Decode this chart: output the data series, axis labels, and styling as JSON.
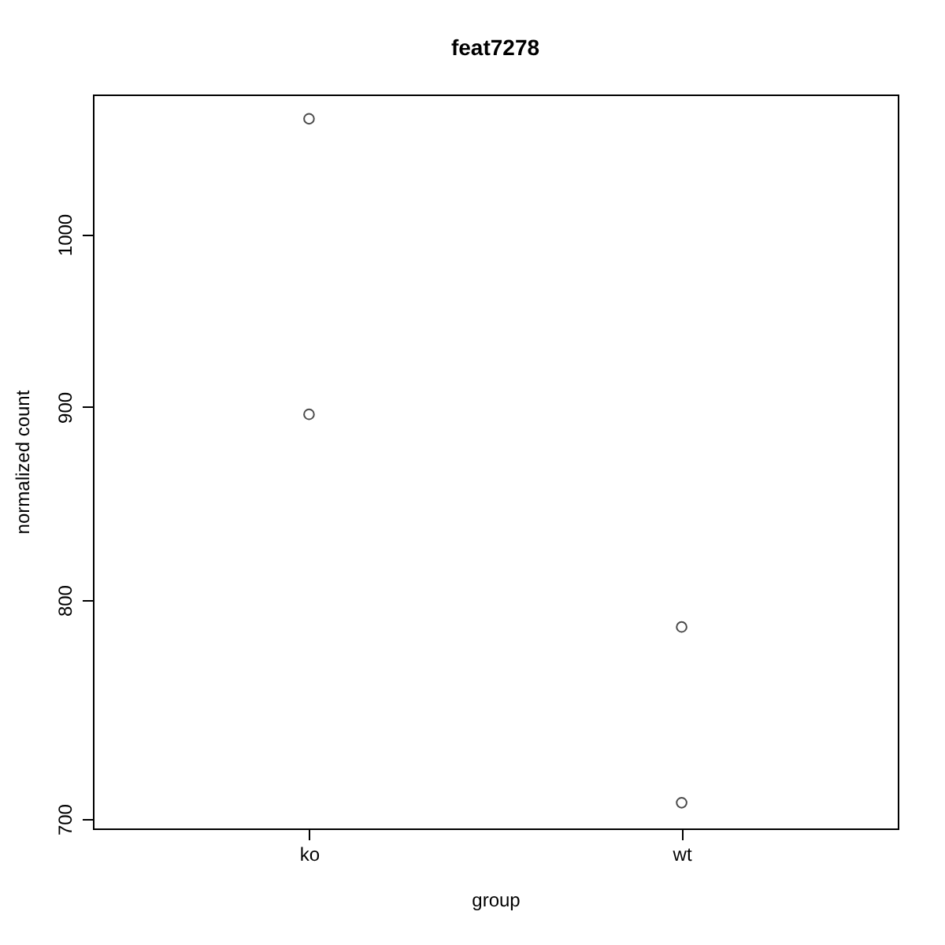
{
  "chart_data": {
    "type": "scatter",
    "title": "feat7278",
    "xlabel": "group",
    "ylabel": "normalized count",
    "categories": [
      "ko",
      "wt"
    ],
    "series": [
      {
        "x": [
          "ko",
          "ko",
          "wt",
          "wt"
        ],
        "values": [
          1073,
          896,
          787,
          707
        ],
        "color": "#000000"
      }
    ],
    "ylim": [
      696,
      1089
    ],
    "yticks": [
      700,
      800,
      900,
      1000
    ],
    "log": true,
    "grid": false,
    "marker": "circle"
  }
}
